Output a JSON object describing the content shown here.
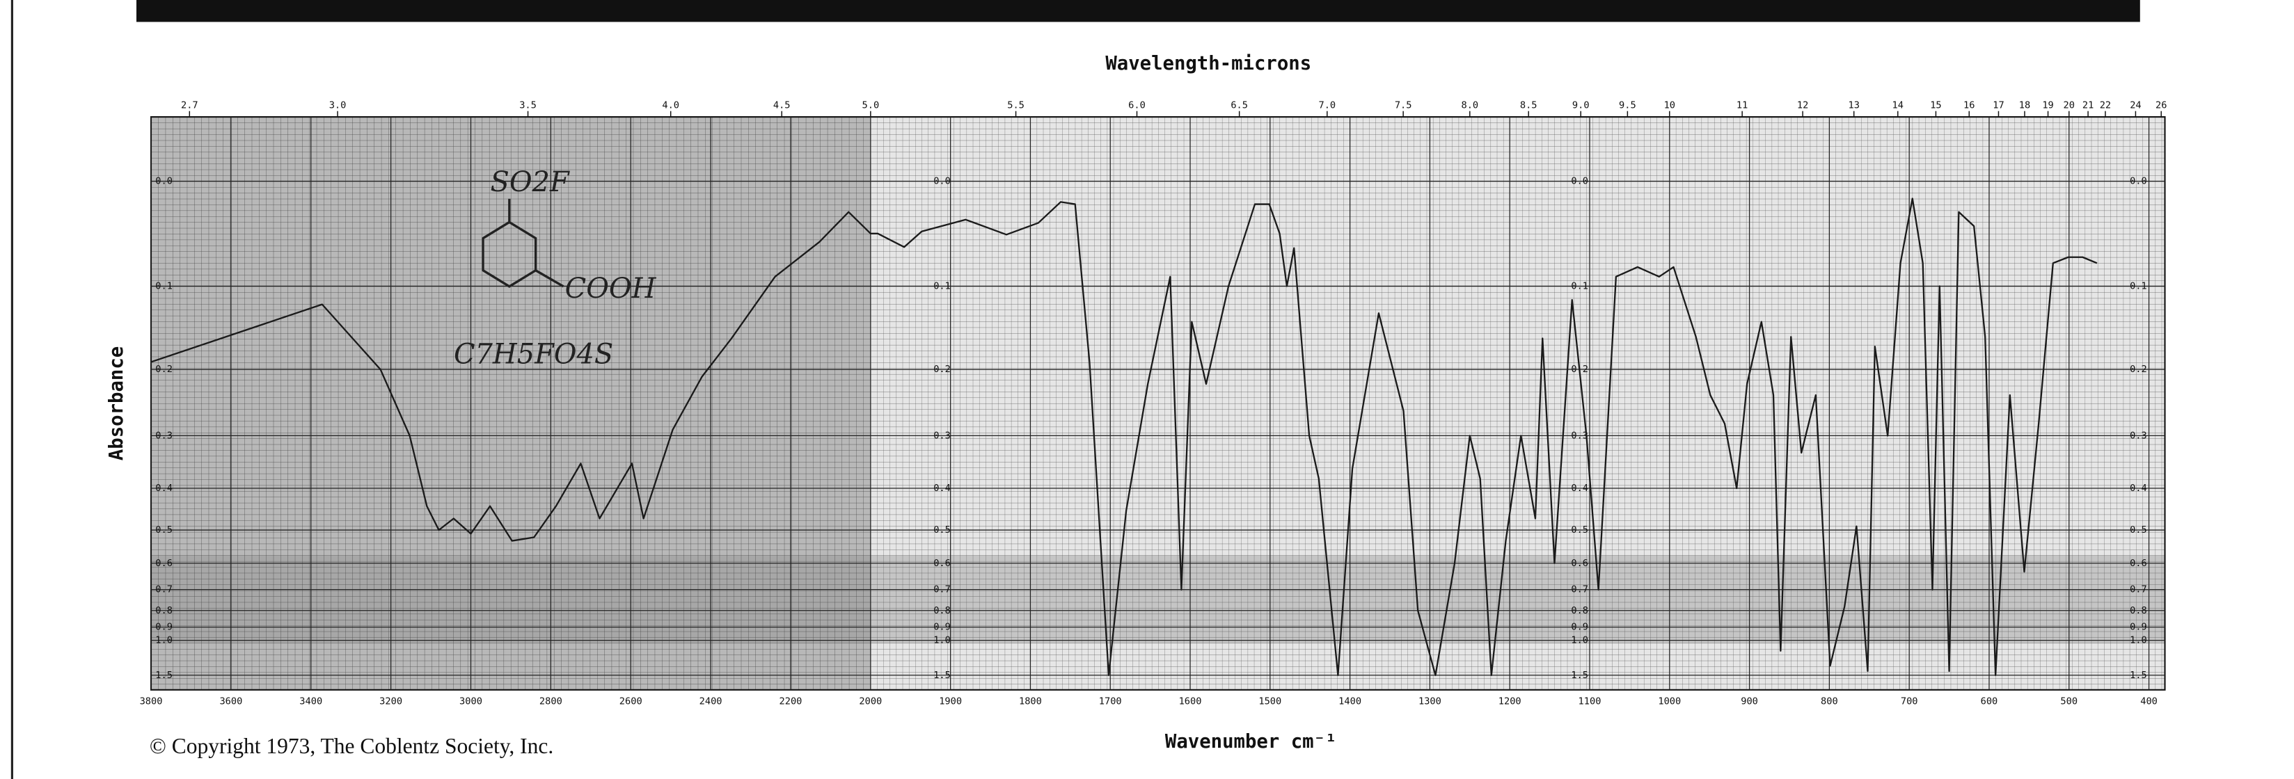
{
  "chart_data": {
    "type": "line",
    "title": "Wavelength-microns",
    "x_label": "Wavenumber cm⁻¹",
    "y_label": "Absorbance",
    "x": [
      3800,
      3372,
      3226,
      3153,
      3110,
      3080,
      3043,
      3000,
      2952,
      2897,
      2842,
      2787,
      2725,
      2678,
      2597,
      2568,
      2495,
      2422,
      2348,
      2239,
      2128,
      2055,
      2000,
      1991,
      1958,
      1936,
      1881,
      1830,
      1790,
      1762,
      1744,
      1726,
      1702,
      1680,
      1653,
      1625,
      1611,
      1598,
      1580,
      1552,
      1519,
      1501,
      1488,
      1479,
      1470,
      1451,
      1439,
      1415,
      1397,
      1364,
      1333,
      1315,
      1293,
      1269,
      1250,
      1237,
      1223,
      1205,
      1186,
      1168,
      1159,
      1144,
      1122,
      1104,
      1089,
      1067,
      1040,
      1013,
      995,
      967,
      949,
      931,
      916,
      903,
      885,
      870,
      861,
      848,
      835,
      817,
      799,
      781,
      766,
      752,
      743,
      727,
      711,
      696,
      683,
      671,
      662,
      650,
      638,
      619,
      605,
      592,
      574,
      556,
      538,
      520,
      501,
      483,
      465
    ],
    "series": [
      {
        "color": "#1a1a1a",
        "values": [
          0.19,
          0.12,
          0.2,
          0.3,
          0.44,
          0.5,
          0.47,
          0.51,
          0.44,
          0.53,
          0.52,
          0.44,
          0.35,
          0.47,
          0.35,
          0.47,
          0.29,
          0.21,
          0.16,
          0.09,
          0.055,
          0.027,
          0.047,
          0.047,
          0.06,
          0.045,
          0.034,
          0.048,
          0.037,
          0.018,
          0.02,
          0.19,
          1.5,
          0.45,
          0.22,
          0.09,
          0.7,
          0.14,
          0.22,
          0.1,
          0.02,
          0.02,
          0.047,
          0.1,
          0.061,
          0.3,
          0.38,
          1.5,
          0.36,
          0.13,
          0.26,
          0.8,
          1.5,
          0.6,
          0.3,
          0.38,
          1.5,
          0.53,
          0.3,
          0.47,
          0.16,
          0.6,
          0.115,
          0.3,
          0.7,
          0.09,
          0.08,
          0.09,
          0.08,
          0.158,
          0.236,
          0.28,
          0.4,
          0.22,
          0.14,
          0.236,
          1.1,
          0.158,
          0.33,
          0.236,
          1.3,
          0.78,
          0.49,
          1.4,
          0.17,
          0.3,
          0.076,
          0.015,
          0.076,
          0.7,
          0.1,
          1.4,
          0.027,
          0.04,
          0.158,
          1.5,
          0.236,
          0.63,
          0.28,
          0.076,
          0.07,
          0.07,
          0.076
        ]
      }
    ],
    "xlim": [
      3800,
      380
    ],
    "x_break": 2000,
    "xticks": [
      3800,
      3600,
      3400,
      3200,
      3000,
      2800,
      2600,
      2400,
      2200,
      2000,
      1900,
      1800,
      1700,
      1600,
      1500,
      1400,
      1300,
      1200,
      1100,
      1000,
      900,
      800,
      700,
      600,
      500,
      400
    ],
    "x2ticks": [
      2.7,
      {
        "value": 3,
        "label": "3.0"
      },
      3.5,
      {
        "value": 4,
        "label": "4.0"
      },
      4.5,
      {
        "value": 5,
        "label": "5.0"
      },
      5.5,
      {
        "value": 6,
        "label": "6.0"
      },
      6.5,
      {
        "value": 7,
        "label": "7.0"
      },
      7.5,
      {
        "value": 8,
        "label": "8.0"
      },
      8.5,
      {
        "value": 9,
        "label": "9.0"
      },
      9.5,
      10,
      11,
      12,
      13,
      14,
      15,
      16,
      17,
      18,
      19,
      20,
      21,
      22,
      24,
      26
    ],
    "ylim": [
      0,
      1.5
    ],
    "yticks": [
      {
        "value": 0,
        "label": "0.0"
      },
      0.1,
      0.2,
      0.3,
      0.4,
      0.5,
      0.6,
      0.7,
      0.8,
      0.9,
      {
        "value": 1,
        "label": "1.0"
      },
      1.5
    ],
    "y_scale": "absorbance",
    "grid": true,
    "annotations": [
      "SO2F",
      "COOH",
      "C7H5FO4S"
    ]
  },
  "footer": "© Copyright 1973, The Coblentz Society, Inc."
}
